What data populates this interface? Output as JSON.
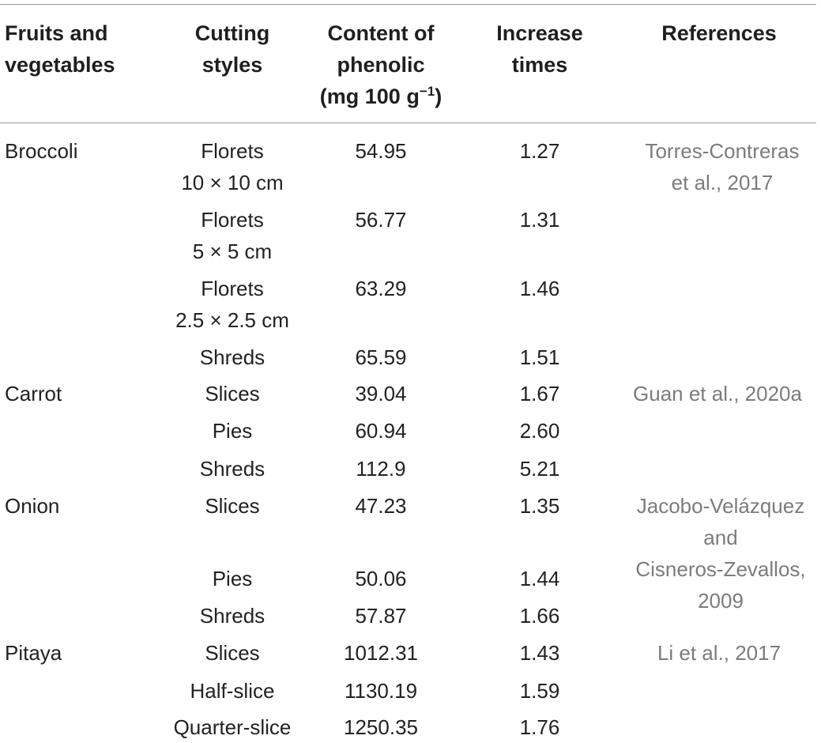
{
  "headers": {
    "fruits": [
      "Fruits and",
      "vegetables"
    ],
    "cutting": [
      "Cutting",
      "styles"
    ],
    "content": [
      "Content of",
      "phenolic",
      "(mg 100 g",
      "−1",
      ")"
    ],
    "increase": [
      "Increase",
      "times"
    ],
    "references": "References"
  },
  "rows": [
    {
      "fruit": "Broccoli",
      "cut": [
        "Florets",
        "10 × 10 cm"
      ],
      "content": "54.95",
      "inc": "1.27"
    },
    {
      "fruit": "",
      "cut": [
        "Florets",
        "5 × 5 cm"
      ],
      "content": "56.77",
      "inc": "1.31"
    },
    {
      "fruit": "",
      "cut": [
        "Florets",
        "2.5 × 2.5 cm"
      ],
      "content": "63.29",
      "inc": "1.46"
    },
    {
      "fruit": "",
      "cut": [
        "Shreds"
      ],
      "content": "65.59",
      "inc": "1.51"
    },
    {
      "fruit": "Carrot",
      "cut": [
        "Slices"
      ],
      "content": "39.04",
      "inc": "1.67"
    },
    {
      "fruit": "",
      "cut": [
        "Pies"
      ],
      "content": "60.94",
      "inc": "2.60"
    },
    {
      "fruit": "",
      "cut": [
        "Shreds"
      ],
      "content": "112.9",
      "inc": "5.21"
    },
    {
      "fruit": "Onion",
      "cut": [
        "Slices"
      ],
      "content": "47.23",
      "inc": "1.35"
    },
    {
      "fruit": "",
      "cut": [
        "Pies"
      ],
      "content": "50.06",
      "inc": "1.44"
    },
    {
      "fruit": "",
      "cut": [
        "Shreds"
      ],
      "content": "57.87",
      "inc": "1.66"
    },
    {
      "fruit": "Pitaya",
      "cut": [
        "Slices"
      ],
      "content": "1012.31",
      "inc": "1.43"
    },
    {
      "fruit": "",
      "cut": [
        "Half-slice"
      ],
      "content": "1130.19",
      "inc": "1.59"
    },
    {
      "fruit": "",
      "cut": [
        "Quarter-slice"
      ],
      "content": "1250.35",
      "inc": "1.76"
    }
  ],
  "references": [
    [
      "Torres-Contreras",
      "et al., 2017"
    ],
    [
      "Guan et al., 2020a"
    ],
    [
      "Jacobo-Velázquez",
      "and",
      "Cisneros-Zevallos,",
      "2009"
    ],
    [
      "Li et al., 2017"
    ]
  ]
}
